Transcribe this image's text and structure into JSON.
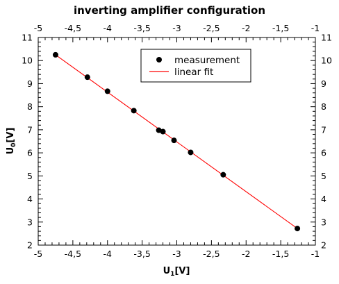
{
  "chart_data": {
    "type": "scatter",
    "title": "inverting amplifier configuration",
    "xlabel": {
      "main": "U",
      "sub": "1",
      "unit": "[V]"
    },
    "ylabel": {
      "main": "U",
      "sub": "0",
      "unit": "[V]"
    },
    "xlim": [
      -5,
      -1
    ],
    "ylim": [
      2,
      11
    ],
    "x_ticks": [
      -5,
      -4.5,
      -4,
      -3.5,
      -3,
      -2.5,
      -2,
      -1.5,
      -1
    ],
    "x_tick_labels": [
      "-5",
      "-4,5",
      "-4",
      "-3,5",
      "-3",
      "-2,5",
      "-2",
      "-1,5",
      "-1"
    ],
    "y_ticks": [
      2,
      3,
      4,
      5,
      6,
      7,
      8,
      9,
      10,
      11
    ],
    "y_tick_labels": [
      "2",
      "3",
      "4",
      "5",
      "6",
      "7",
      "8",
      "9",
      "10",
      "11"
    ],
    "grid": false,
    "legend_position": "top-right",
    "series": [
      {
        "name": "measurement",
        "kind": "points",
        "color": "#000000",
        "x": [
          -4.75,
          -4.29,
          -4.0,
          -3.62,
          -3.26,
          -3.2,
          -3.04,
          -2.8,
          -2.33,
          -1.26
        ],
        "y": [
          10.25,
          9.28,
          8.67,
          7.83,
          6.98,
          6.92,
          6.54,
          6.02,
          5.05,
          2.72
        ]
      },
      {
        "name": "linear fit",
        "kind": "line",
        "color": "#ff0000",
        "x": [
          -4.75,
          -1.26
        ],
        "y": [
          10.25,
          2.72
        ]
      }
    ]
  }
}
